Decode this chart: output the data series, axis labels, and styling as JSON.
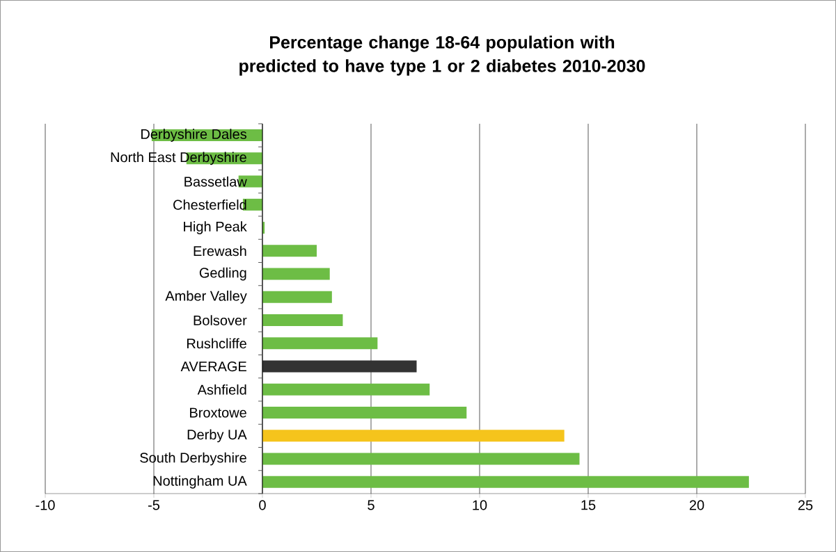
{
  "chart_data": {
    "type": "bar",
    "orientation": "horizontal",
    "title": "Percentage change 18-64 population with predicted to have type 1 or 2 diabetes  2010-2030",
    "categories": [
      "Derbyshire Dales",
      "North East Derbyshire",
      "Bassetlaw",
      "Chesterfield",
      "High Peak",
      "Erewash",
      "Gedling",
      "Amber Valley",
      "Bolsover",
      "Rushcliffe",
      "AVERAGE",
      "Ashfield",
      "Broxtowe",
      "Derby UA",
      "South Derbyshire",
      "Nottingham UA"
    ],
    "values": [
      -5.1,
      -3.5,
      -1.1,
      -0.9,
      0.1,
      2.5,
      3.1,
      3.2,
      3.7,
      5.3,
      7.1,
      7.7,
      9.4,
      13.9,
      14.6,
      22.4
    ],
    "colors": [
      "#6dbd45",
      "#6dbd45",
      "#6dbd45",
      "#6dbd45",
      "#6dbd45",
      "#6dbd45",
      "#6dbd45",
      "#6dbd45",
      "#6dbd45",
      "#6dbd45",
      "#333333",
      "#6dbd45",
      "#6dbd45",
      "#f5c41c",
      "#6dbd45",
      "#6dbd45"
    ],
    "xlim": [
      -10,
      25
    ],
    "xticks": [
      -10,
      -5,
      0,
      5,
      10,
      15,
      20,
      25
    ],
    "grid": "x"
  }
}
